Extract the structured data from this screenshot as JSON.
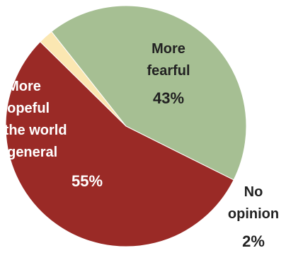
{
  "chart_data": {
    "type": "pie",
    "slices": [
      {
        "key": "hopeful",
        "lines": [
          "More",
          "hopeful",
          "for the world",
          "in general"
        ],
        "value_label": "55%",
        "value": 55,
        "color": "#9a2a26",
        "text_color": "#ffffff"
      },
      {
        "key": "fearful",
        "lines": [
          "More",
          "fearful"
        ],
        "value_label": "43%",
        "value": 43,
        "color": "#a6bf93",
        "text_color": "#222222"
      },
      {
        "key": "no_opinion",
        "lines": [
          "No",
          "opinion"
        ],
        "value_label": "2%",
        "value": 2,
        "color": "#fbe7b2",
        "text_color": "#222222"
      }
    ]
  }
}
